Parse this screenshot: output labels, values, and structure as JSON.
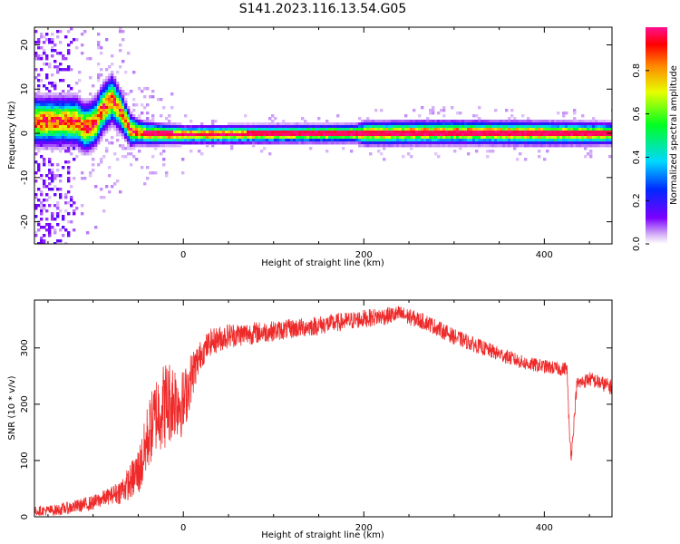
{
  "title": "S141.2023.116.13.54.G05",
  "colors": {
    "snr_line": "#ee2a2a",
    "center_ridge": "#e8141e",
    "axis": "#000000"
  },
  "chart_data": [
    {
      "type": "heatmap",
      "xlabel": "Height of straight line (km)",
      "ylabel": "Frequency (Hz)",
      "xlim": [
        -165,
        475
      ],
      "ylim": [
        -25,
        24
      ],
      "xticks": [
        0,
        200,
        400
      ],
      "yticks": [
        -20,
        -10,
        0,
        10,
        20
      ],
      "xtick_labels": [
        "0",
        "200",
        "400"
      ],
      "ytick_labels": [
        "-20",
        "-10",
        "0",
        "10",
        "20"
      ],
      "colorbar": {
        "label": "Normalized spectral amplitude",
        "range": [
          0,
          1
        ],
        "ticks": [
          0.0,
          0.2,
          0.4,
          0.6,
          0.8
        ],
        "tick_labels": [
          "0.0",
          "0.2",
          "0.4",
          "0.6",
          "0.8"
        ],
        "colormap": "rainbow (white/purple low to red/magenta high)"
      },
      "ridge_center_hz": [
        [
          -120,
          3
        ],
        [
          -110,
          1.5
        ],
        [
          -100,
          2.5
        ],
        [
          -90,
          6
        ],
        [
          -80,
          8
        ],
        [
          -70,
          5
        ],
        [
          -60,
          1
        ],
        [
          -50,
          0.5
        ],
        [
          -40,
          0.2
        ],
        [
          0,
          0
        ],
        [
          200,
          0.3
        ],
        [
          300,
          0.5
        ],
        [
          400,
          0.3
        ],
        [
          475,
          0.2
        ]
      ],
      "ridge_halfwidth_hz": [
        [
          -120,
          4
        ],
        [
          -80,
          4
        ],
        [
          -50,
          2
        ],
        [
          0,
          1.5
        ],
        [
          190,
          1.5
        ],
        [
          200,
          2
        ],
        [
          400,
          2
        ],
        [
          475,
          1.8
        ]
      ],
      "noise_region_km": [
        -165,
        -120
      ]
    },
    {
      "type": "line",
      "xlabel": "Height of straight line (km)",
      "ylabel": "SNR (10 * v/v)",
      "xlim": [
        -165,
        475
      ],
      "ylim": [
        0,
        385
      ],
      "xticks": [
        0,
        200,
        400
      ],
      "yticks": [
        0,
        100,
        200,
        300
      ],
      "xtick_labels": [
        "0",
        "200",
        "400"
      ],
      "ytick_labels": [
        "0",
        "100",
        "200",
        "300"
      ],
      "series": [
        {
          "baseline": [
            [
              -165,
              10
            ],
            [
              -140,
              12
            ],
            [
              -120,
              18
            ],
            [
              -100,
              25
            ],
            [
              -85,
              35
            ],
            [
              -70,
              45
            ],
            [
              -60,
              60
            ],
            [
              -50,
              80
            ],
            [
              -45,
              100
            ],
            [
              -40,
              140
            ],
            [
              -35,
              160
            ],
            [
              -30,
              185
            ],
            [
              -20,
              200
            ],
            [
              -10,
              210
            ],
            [
              0,
              200
            ],
            [
              10,
              255
            ],
            [
              20,
              290
            ],
            [
              30,
              310
            ],
            [
              50,
              322
            ],
            [
              100,
              330
            ],
            [
              150,
              340
            ],
            [
              200,
              352
            ],
            [
              240,
              360
            ],
            [
              270,
              345
            ],
            [
              300,
              320
            ],
            [
              340,
              295
            ],
            [
              380,
              272
            ],
            [
              420,
              262
            ],
            [
              425,
              265
            ],
            [
              428,
              140
            ],
            [
              430,
              110
            ],
            [
              432,
              150
            ],
            [
              436,
              235
            ],
            [
              450,
              245
            ],
            [
              475,
              230
            ]
          ],
          "noise_amplitude": [
            [
              -165,
              8
            ],
            [
              -80,
              15
            ],
            [
              -60,
              30
            ],
            [
              -40,
              60
            ],
            [
              -20,
              80
            ],
            [
              0,
              60
            ],
            [
              20,
              25
            ],
            [
              100,
              18
            ],
            [
              200,
              16
            ],
            [
              300,
              14
            ],
            [
              420,
              12
            ],
            [
              475,
              14
            ]
          ]
        }
      ]
    }
  ]
}
